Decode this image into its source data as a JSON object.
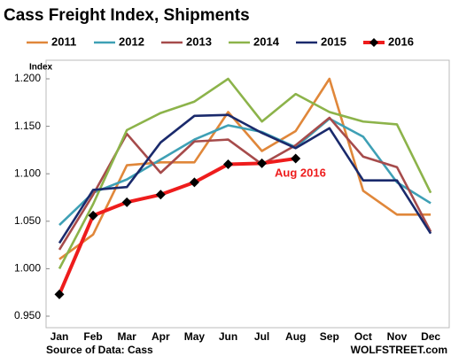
{
  "chart_data": {
    "type": "line",
    "title": "Cass Freight Index,  Shipments",
    "y_label": "Index",
    "annotation": "Aug 2016",
    "source": "Source of Data: Cass",
    "watermark": "WOLFSTREET.com",
    "categories": [
      "Jan",
      "Feb",
      "Mar",
      "Apr",
      "May",
      "Jun",
      "Jul",
      "Aug",
      "Sep",
      "Oct",
      "Nov",
      "Dec"
    ],
    "ylim": [
      0.95,
      1.2
    ],
    "yticks": [
      {
        "value": 0.95,
        "label": "0.950"
      },
      {
        "value": 1.0,
        "label": "1.000"
      },
      {
        "value": 1.05,
        "label": "1.050"
      },
      {
        "value": 1.1,
        "label": "1.100"
      },
      {
        "value": 1.15,
        "label": "1.150"
      },
      {
        "value": 1.2,
        "label": "1.200"
      }
    ],
    "grid": false,
    "series": [
      {
        "name": "2011",
        "color": "#e0873a",
        "values": [
          1.01,
          1.036,
          1.109,
          1.112,
          1.112,
          1.165,
          1.124,
          1.145,
          1.2,
          1.082,
          1.057,
          1.057
        ]
      },
      {
        "name": "2012",
        "color": "#3ea0b5",
        "values": [
          1.046,
          1.08,
          1.094,
          1.115,
          1.136,
          1.151,
          1.144,
          1.128,
          1.158,
          1.139,
          1.091,
          1.069
        ]
      },
      {
        "name": "2013",
        "color": "#a64b4b",
        "values": [
          1.02,
          1.078,
          1.142,
          1.101,
          1.134,
          1.136,
          1.11,
          1.13,
          1.159,
          1.118,
          1.107,
          1.039
        ]
      },
      {
        "name": "2014",
        "color": "#8cb34a",
        "values": [
          1.0,
          1.068,
          1.146,
          1.164,
          1.176,
          1.2,
          1.155,
          1.184,
          1.165,
          1.155,
          1.152,
          1.08
        ]
      },
      {
        "name": "2015",
        "color": "#1a2a6c",
        "values": [
          1.027,
          1.083,
          1.086,
          1.133,
          1.161,
          1.162,
          1.143,
          1.127,
          1.148,
          1.093,
          1.093,
          1.037
        ]
      },
      {
        "name": "2016",
        "color": "#ee1c1c",
        "marker_color": "#000000",
        "values": [
          0.973,
          1.056,
          1.07,
          1.078,
          1.091,
          1.11,
          1.111,
          1.116,
          null,
          null,
          null,
          null
        ]
      }
    ]
  }
}
